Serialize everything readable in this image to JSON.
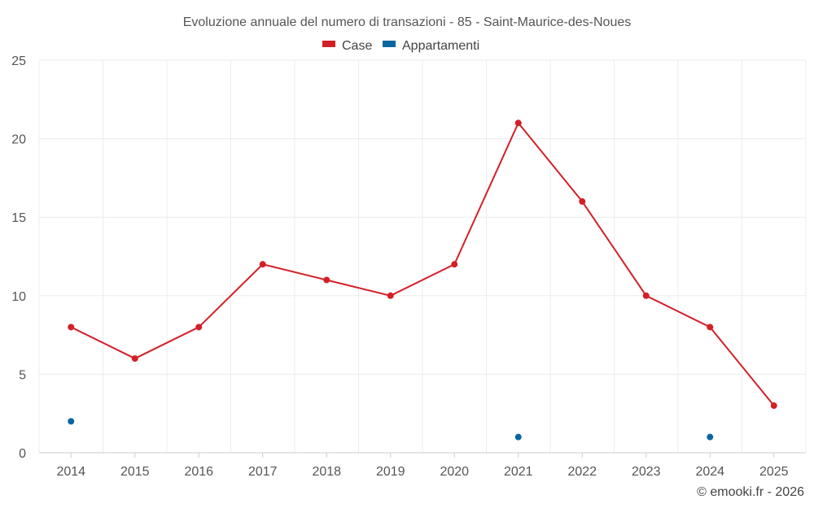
{
  "chart_data": {
    "type": "line",
    "title": "Evoluzione annuale del numero di transazioni - 85 - Saint-Maurice-des-Noues",
    "categories": [
      "2014",
      "2015",
      "2016",
      "2017",
      "2018",
      "2019",
      "2020",
      "2021",
      "2022",
      "2023",
      "2024",
      "2025"
    ],
    "series": [
      {
        "name": "Case",
        "color": "#d32027",
        "line": true,
        "values": [
          8,
          6,
          8,
          12,
          11,
          10,
          12,
          21,
          16,
          10,
          8,
          3
        ]
      },
      {
        "name": "Appartamenti",
        "color": "#0a66a0",
        "line": false,
        "values": [
          2,
          null,
          null,
          null,
          null,
          null,
          null,
          1,
          null,
          null,
          1,
          null
        ]
      }
    ],
    "ylim": [
      0,
      25
    ],
    "yticks": [
      "0",
      "5",
      "10",
      "15",
      "20",
      "25"
    ],
    "xlabel": "",
    "ylabel": "",
    "grid": true,
    "legend": "top-center"
  },
  "credit": "© emooki.fr - 2026"
}
